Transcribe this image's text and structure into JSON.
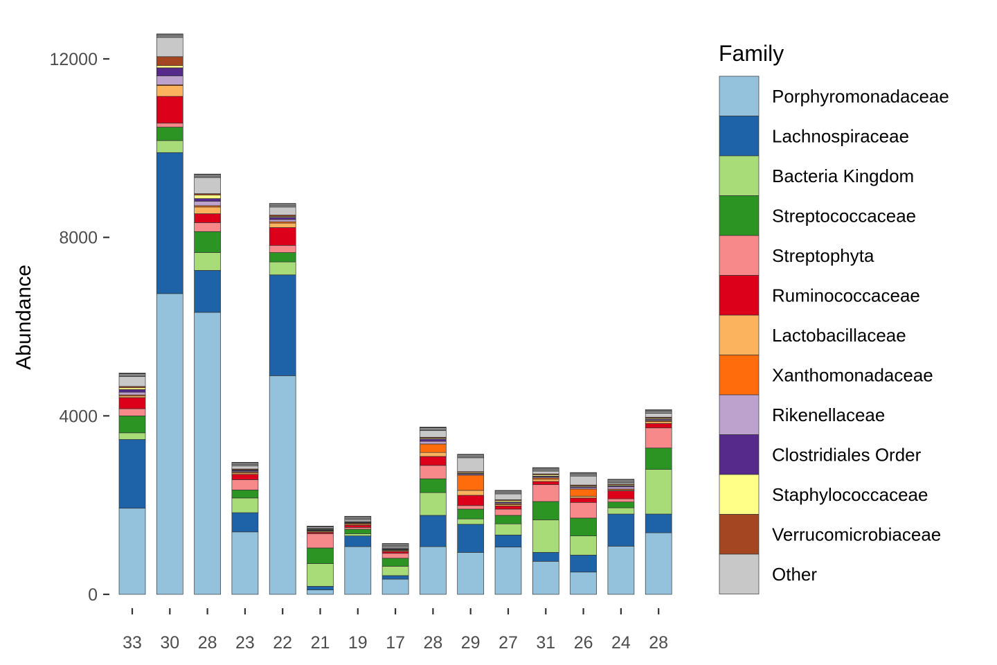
{
  "chart_data": {
    "type": "bar",
    "stacked": true,
    "xlabel": "",
    "ylabel": "Abundance",
    "ylim": [
      0,
      12500
    ],
    "yticks": [
      0,
      4000,
      8000,
      12000
    ],
    "grid": false,
    "legend": {
      "title": "Family",
      "position": "right"
    },
    "categories": [
      "33",
      "30",
      "28",
      "23",
      "22",
      "21",
      "19",
      "17",
      "28",
      "29",
      "27",
      "31",
      "26",
      "24",
      "28"
    ],
    "series": [
      {
        "name": "Porphyromonadaceae",
        "color": "#94c2dc",
        "values": [
          1930,
          6740,
          6320,
          1400,
          4900,
          100,
          1070,
          340,
          1070,
          940,
          1060,
          740,
          500,
          1080,
          1380
        ]
      },
      {
        "name": "Lachnospiraceae",
        "color": "#1e62a8",
        "values": [
          1540,
          3160,
          940,
          430,
          2260,
          80,
          240,
          80,
          700,
          630,
          270,
          200,
          380,
          720,
          420
        ]
      },
      {
        "name": "Bacteria Kingdom",
        "color": "#a8dc78",
        "values": [
          150,
          270,
          400,
          330,
          290,
          510,
          50,
          210,
          510,
          120,
          250,
          730,
          430,
          140,
          1000
        ]
      },
      {
        "name": "Streptococcaceae",
        "color": "#2b9422",
        "values": [
          380,
          300,
          470,
          180,
          210,
          350,
          100,
          180,
          310,
          220,
          190,
          410,
          400,
          130,
          480
        ]
      },
      {
        "name": "Streptophyta",
        "color": "#f8898a",
        "values": [
          160,
          90,
          200,
          230,
          160,
          320,
          40,
          110,
          300,
          80,
          140,
          380,
          350,
          70,
          450
        ]
      },
      {
        "name": "Ruminococcaceae",
        "color": "#dc001b",
        "values": [
          250,
          600,
          200,
          120,
          400,
          30,
          50,
          40,
          200,
          230,
          70,
          70,
          100,
          180,
          100
        ]
      },
      {
        "name": "Lactobacillaceae",
        "color": "#fbb35e",
        "values": [
          40,
          240,
          150,
          30,
          100,
          20,
          20,
          20,
          90,
          110,
          30,
          50,
          40,
          20,
          40
        ]
      },
      {
        "name": "Xanthomonadaceae",
        "color": "#ff6c0c",
        "values": [
          20,
          20,
          30,
          20,
          30,
          10,
          20,
          10,
          190,
          340,
          20,
          30,
          160,
          20,
          20
        ]
      },
      {
        "name": "Rikenellaceae",
        "color": "#bda2cd",
        "values": [
          60,
          200,
          100,
          20,
          50,
          10,
          10,
          10,
          60,
          20,
          20,
          20,
          30,
          50,
          20
        ]
      },
      {
        "name": "Clostridiales Order",
        "color": "#552a8a",
        "values": [
          60,
          180,
          60,
          20,
          50,
          10,
          10,
          10,
          50,
          20,
          20,
          20,
          20,
          20,
          20
        ]
      },
      {
        "name": "Staphylococcaceae",
        "color": "#ffff88",
        "values": [
          40,
          50,
          80,
          10,
          20,
          10,
          10,
          10,
          20,
          20,
          30,
          30,
          20,
          20,
          20
        ]
      },
      {
        "name": "Verrucomicrobiaceae",
        "color": "#a54622",
        "values": [
          30,
          200,
          30,
          20,
          30,
          10,
          10,
          10,
          20,
          20,
          20,
          20,
          20,
          20,
          20
        ]
      },
      {
        "name": "Other",
        "color": "#c8c8c8",
        "values": [
          300,
          510,
          440,
          150,
          260,
          70,
          120,
          110,
          230,
          390,
          210,
          140,
          280,
          110,
          170
        ]
      }
    ]
  }
}
